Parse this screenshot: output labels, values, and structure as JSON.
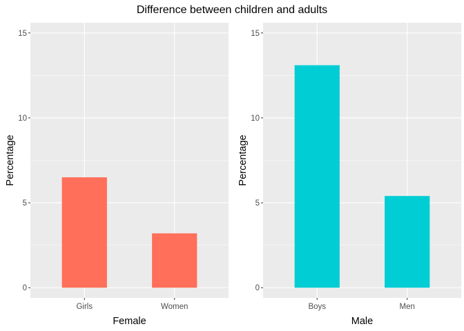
{
  "title": "Difference between children and adults",
  "chart_data": [
    {
      "type": "bar",
      "categories": [
        "Girls",
        "Women"
      ],
      "values": [
        6.5,
        3.2
      ],
      "xlabel": "Female",
      "ylabel": "Percentage",
      "ylim": [
        -0.6,
        15.6
      ],
      "yticks": [
        "0",
        "5",
        "10",
        "15"
      ],
      "bar_color": "#FF6F59",
      "grid": true
    },
    {
      "type": "bar",
      "categories": [
        "Boys",
        "Men"
      ],
      "values": [
        13.1,
        5.4
      ],
      "xlabel": "Male",
      "ylabel": "Percentage",
      "ylim": [
        -0.6,
        15.6
      ],
      "yticks": [
        "0",
        "5",
        "10",
        "15"
      ],
      "bar_color": "#00CDD4",
      "grid": true
    }
  ],
  "colors": {
    "panel_background": "#EBEBEB",
    "grid_major": "#FFFFFF",
    "tick_mark": "#333333"
  }
}
